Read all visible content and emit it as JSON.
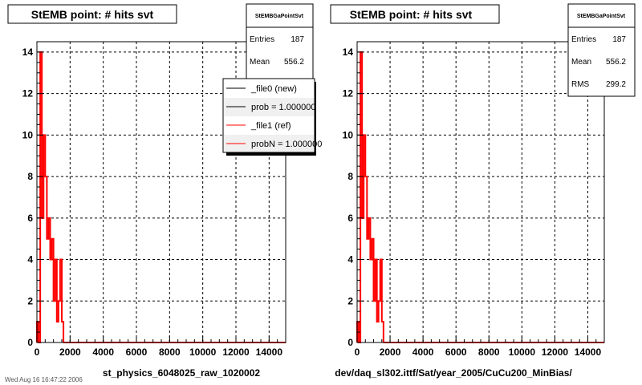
{
  "footer_text": "Wed Aug 16 16:47:22 2006",
  "colors": {
    "ref": "#ff0000",
    "new": "#000000",
    "grid": "#000000"
  },
  "chart_data": [
    {
      "type": "bar",
      "title": "StEMB point: # hits svt",
      "xlabel": "st_physics_6048025_raw_1020002",
      "xlim": [
        0,
        15000
      ],
      "ylim": [
        0,
        14.5
      ],
      "xticks": [
        0,
        2000,
        4000,
        6000,
        8000,
        10000,
        12000,
        14000
      ],
      "yticks": [
        0,
        2,
        4,
        6,
        8,
        10,
        12,
        14
      ],
      "grid": true,
      "bin_width": 100,
      "series": [
        {
          "name": "_file1 (ref)",
          "color": "#ff0000",
          "bins": [
            [
              0,
              1
            ],
            [
              100,
              0
            ],
            [
              200,
              14
            ],
            [
              300,
              6
            ],
            [
              400,
              10
            ],
            [
              500,
              8
            ],
            [
              600,
              5
            ],
            [
              700,
              6
            ],
            [
              800,
              4
            ],
            [
              900,
              5
            ],
            [
              1000,
              2
            ],
            [
              1100,
              4
            ],
            [
              1200,
              1
            ],
            [
              1300,
              2
            ],
            [
              1400,
              4
            ],
            [
              1500,
              1
            ]
          ]
        }
      ],
      "stats": {
        "header": "StEMBGaPointSvt",
        "rows": [
          {
            "label": "Entries",
            "value": "187"
          },
          {
            "label": "Mean",
            "value": "556.2"
          }
        ]
      },
      "legend": {
        "entries": [
          {
            "label": "_file0 (new)",
            "color": "#000000"
          },
          {
            "label": "prob = 1.000000",
            "color": "#000000"
          },
          {
            "label": "_file1 (ref)",
            "color": "#ff0000"
          },
          {
            "label": "probN = 1.000000",
            "color": "#ff0000"
          }
        ]
      }
    },
    {
      "type": "bar",
      "title": "StEMB point: # hits svt",
      "xlabel": "dev/daq_sl302.ittf/Sat/year_2005/CuCu200_MinBias/",
      "xlim": [
        0,
        15000
      ],
      "ylim": [
        0,
        14.5
      ],
      "xticks": [
        0,
        2000,
        4000,
        6000,
        8000,
        10000,
        12000,
        14000
      ],
      "yticks": [
        0,
        2,
        4,
        6,
        8,
        10,
        12,
        14
      ],
      "grid": true,
      "bin_width": 100,
      "series": [
        {
          "name": "",
          "color": "#ff0000",
          "bins": [
            [
              0,
              1
            ],
            [
              100,
              0
            ],
            [
              200,
              14
            ],
            [
              300,
              6
            ],
            [
              400,
              10
            ],
            [
              500,
              8
            ],
            [
              600,
              5
            ],
            [
              700,
              6
            ],
            [
              800,
              4
            ],
            [
              900,
              5
            ],
            [
              1000,
              2
            ],
            [
              1100,
              4
            ],
            [
              1200,
              1
            ],
            [
              1300,
              2
            ],
            [
              1400,
              4
            ],
            [
              1500,
              1
            ]
          ]
        }
      ],
      "stats": {
        "header": "StEMBGaPointSvt",
        "rows": [
          {
            "label": "Entries",
            "value": "187"
          },
          {
            "label": "Mean",
            "value": "556.2"
          },
          {
            "label": "RMS",
            "value": "299.2"
          }
        ]
      },
      "legend": null
    }
  ]
}
